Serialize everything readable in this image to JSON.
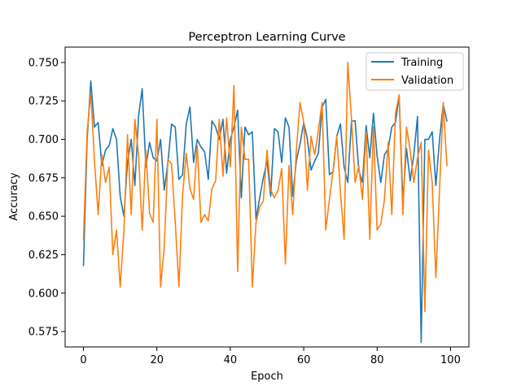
{
  "chart_data": {
    "type": "line",
    "title": "Perceptron Learning Curve",
    "xlabel": "Epoch",
    "ylabel": "Accuracy",
    "xlim": [
      -5,
      105
    ],
    "ylim": [
      0.565,
      0.76
    ],
    "xticks": [
      0,
      20,
      40,
      60,
      80,
      100
    ],
    "yticks": [
      0.575,
      0.6,
      0.625,
      0.65,
      0.675,
      0.7,
      0.725,
      0.75
    ],
    "ytick_labels": [
      "0.575",
      "0.600",
      "0.625",
      "0.650",
      "0.675",
      "0.700",
      "0.725",
      "0.750"
    ],
    "grid": false,
    "legend_position": "top-right",
    "x": [
      0,
      1,
      2,
      3,
      4,
      5,
      6,
      7,
      8,
      9,
      10,
      11,
      12,
      13,
      14,
      15,
      16,
      17,
      18,
      19,
      20,
      21,
      22,
      23,
      24,
      25,
      26,
      27,
      28,
      29,
      30,
      31,
      32,
      33,
      34,
      35,
      36,
      37,
      38,
      39,
      40,
      41,
      42,
      43,
      44,
      45,
      46,
      47,
      48,
      49,
      50,
      51,
      52,
      53,
      54,
      55,
      56,
      57,
      58,
      59,
      60,
      61,
      62,
      63,
      64,
      65,
      66,
      67,
      68,
      69,
      70,
      71,
      72,
      73,
      74,
      75,
      76,
      77,
      78,
      79,
      80,
      81,
      82,
      83,
      84,
      85,
      86,
      87,
      88,
      89,
      90,
      91,
      92,
      93,
      94,
      95,
      96,
      97,
      98,
      99
    ],
    "series": [
      {
        "name": "Training",
        "color": "#1f77b4",
        "values": [
          0.618,
          0.7,
          0.738,
          0.708,
          0.711,
          0.683,
          0.693,
          0.696,
          0.707,
          0.7,
          0.663,
          0.65,
          0.685,
          0.7,
          0.67,
          0.715,
          0.733,
          0.682,
          0.698,
          0.688,
          0.686,
          0.7,
          0.667,
          0.685,
          0.71,
          0.708,
          0.674,
          0.677,
          0.71,
          0.721,
          0.685,
          0.7,
          0.695,
          0.692,
          0.674,
          0.712,
          0.708,
          0.7,
          0.713,
          0.678,
          0.7,
          0.708,
          0.719,
          0.662,
          0.708,
          0.703,
          0.705,
          0.648,
          0.662,
          0.675,
          0.686,
          0.663,
          0.707,
          0.705,
          0.685,
          0.714,
          0.708,
          0.663,
          0.686,
          0.697,
          0.711,
          0.7,
          0.68,
          0.686,
          0.691,
          0.721,
          0.726,
          0.677,
          0.679,
          0.702,
          0.71,
          0.682,
          0.672,
          0.712,
          0.712,
          0.68,
          0.672,
          0.709,
          0.688,
          0.717,
          0.689,
          0.672,
          0.69,
          0.694,
          0.708,
          0.711,
          0.728,
          0.66,
          0.694,
          0.673,
          0.69,
          0.715,
          0.568,
          0.7,
          0.7,
          0.705,
          0.67,
          0.7,
          0.723,
          0.712
        ]
      },
      {
        "name": "Validation",
        "color": "#ff7f0e",
        "values": [
          0.635,
          0.705,
          0.73,
          0.686,
          0.651,
          0.69,
          0.672,
          0.682,
          0.625,
          0.641,
          0.604,
          0.64,
          0.703,
          0.651,
          0.713,
          0.69,
          0.641,
          0.693,
          0.652,
          0.646,
          0.713,
          0.604,
          0.63,
          0.687,
          0.684,
          0.646,
          0.604,
          0.664,
          0.691,
          0.668,
          0.661,
          0.696,
          0.646,
          0.651,
          0.647,
          0.668,
          0.673,
          0.713,
          0.676,
          0.714,
          0.682,
          0.735,
          0.614,
          0.708,
          0.687,
          0.687,
          0.604,
          0.646,
          0.656,
          0.66,
          0.693,
          0.667,
          0.662,
          0.667,
          0.681,
          0.619,
          0.683,
          0.651,
          0.693,
          0.724,
          0.711,
          0.667,
          0.702,
          0.69,
          0.706,
          0.724,
          0.641,
          0.661,
          0.68,
          0.702,
          0.666,
          0.635,
          0.75,
          0.714,
          0.672,
          0.683,
          0.661,
          0.705,
          0.635,
          0.708,
          0.641,
          0.645,
          0.661,
          0.698,
          0.651,
          0.717,
          0.729,
          0.651,
          0.708,
          0.693,
          0.672,
          0.688,
          0.698,
          0.588,
          0.693,
          0.672,
          0.61,
          0.667,
          0.724,
          0.683
        ]
      }
    ]
  }
}
